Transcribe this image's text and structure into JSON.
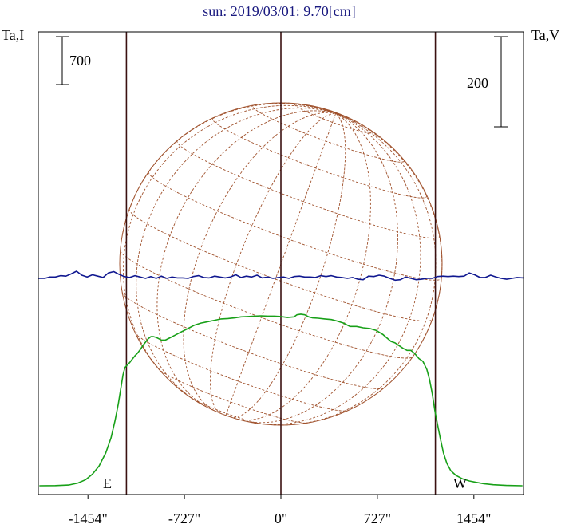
{
  "title": "sun: 2019/03/01: 9.70[cm]",
  "left_axis_label": "Ta,I",
  "right_axis_label": "Ta,V",
  "left_scale_bar_label": "700",
  "right_scale_bar_label": "200",
  "east_label": "E",
  "west_label": "W",
  "colors": {
    "intensity": "#18a018",
    "polarization": "#101890",
    "disk": "#a0522d",
    "frame": "#000000",
    "guides": "#3a1010",
    "title": "#1a1a80"
  },
  "chart_data": {
    "type": "line",
    "title": "sun: 2019/03/01: 9.70[cm]",
    "x_unit": "arcsec",
    "xlim": [
      -1828,
      1828
    ],
    "xticks": [
      -1454,
      -727,
      0,
      727,
      1454
    ],
    "xtick_labels": [
      "-1454\"",
      "-727\"",
      "0\"",
      "727\"",
      "1454\""
    ],
    "solar_limbs": [
      -1164,
      0,
      1164
    ],
    "series": [
      {
        "name": "Ta,I",
        "axis": "left",
        "x": [
          -1820,
          -1700,
          -1600,
          -1530,
          -1470,
          -1420,
          -1370,
          -1320,
          -1280,
          -1250,
          -1225,
          -1205,
          -1190,
          -1175,
          -1160,
          -1140,
          -1120,
          -1100,
          -1080,
          -1060,
          -1040,
          -1020,
          -1000,
          -980,
          -960,
          -940,
          -920,
          -900,
          -870,
          -840,
          -800,
          -750,
          -700,
          -650,
          -600,
          -550,
          -500,
          -450,
          -400,
          -350,
          -300,
          -250,
          -200,
          -150,
          -100,
          -50,
          0,
          50,
          100,
          120,
          150,
          180,
          210,
          240,
          280,
          330,
          380,
          420,
          470,
          520,
          570,
          620,
          670,
          720,
          770,
          800,
          830,
          860,
          890,
          920,
          950,
          980,
          1010,
          1040,
          1070,
          1100,
          1120,
          1140,
          1160,
          1180,
          1200,
          1225,
          1250,
          1280,
          1320,
          1370,
          1420,
          1470,
          1530,
          1600,
          1700,
          1820
        ],
        "y": [
          0,
          2,
          10,
          40,
          90,
          170,
          290,
          480,
          700,
          950,
          1200,
          1440,
          1620,
          1730,
          1760,
          1800,
          1850,
          1900,
          1940,
          1990,
          2050,
          2100,
          2150,
          2180,
          2180,
          2170,
          2150,
          2130,
          2130,
          2160,
          2200,
          2250,
          2300,
          2350,
          2380,
          2400,
          2420,
          2440,
          2445,
          2455,
          2470,
          2475,
          2480,
          2485,
          2480,
          2480,
          2475,
          2460,
          2470,
          2500,
          2510,
          2500,
          2470,
          2455,
          2450,
          2440,
          2430,
          2410,
          2380,
          2330,
          2330,
          2310,
          2300,
          2270,
          2210,
          2160,
          2110,
          2090,
          2050,
          2010,
          1980,
          1980,
          1930,
          1860,
          1820,
          1700,
          1550,
          1350,
          1100,
          900,
          700,
          480,
          330,
          220,
          150,
          100,
          70,
          50,
          30,
          15,
          5,
          0
        ]
      },
      {
        "name": "Ta,V",
        "axis": "right",
        "x": [
          -1828,
          -1780,
          -1740,
          -1700,
          -1660,
          -1620,
          -1580,
          -1540,
          -1500,
          -1460,
          -1420,
          -1380,
          -1340,
          -1300,
          -1260,
          -1220,
          -1180,
          -1140,
          -1100,
          -1060,
          -1020,
          -980,
          -940,
          -900,
          -860,
          -820,
          -780,
          -740,
          -700,
          -660,
          -620,
          -580,
          -540,
          -500,
          -460,
          -420,
          -380,
          -340,
          -300,
          -260,
          -220,
          -180,
          -140,
          -100,
          -60,
          -20,
          20,
          60,
          100,
          140,
          180,
          220,
          260,
          300,
          340,
          380,
          420,
          460,
          500,
          540,
          580,
          620,
          660,
          700,
          740,
          780,
          820,
          860,
          900,
          940,
          980,
          1020,
          1060,
          1100,
          1140,
          1180,
          1220,
          1260,
          1300,
          1340,
          1380,
          1420,
          1460,
          1500,
          1540,
          1580,
          1620,
          1660,
          1700,
          1740,
          1780,
          1828
        ],
        "y": [
          0,
          0,
          3,
          3,
          6,
          5,
          10,
          16,
          7,
          3,
          8,
          5,
          2,
          12,
          15,
          9,
          4,
          2,
          6,
          3,
          0,
          4,
          0,
          5,
          0,
          3,
          1,
          1,
          0,
          4,
          6,
          2,
          1,
          5,
          3,
          1,
          3,
          8,
          2,
          5,
          3,
          7,
          1,
          3,
          0,
          2,
          3,
          0,
          4,
          5,
          3,
          3,
          2,
          6,
          4,
          6,
          3,
          2,
          0,
          2,
          -2,
          -3,
          5,
          4,
          7,
          5,
          0,
          -4,
          -3,
          3,
          0,
          -3,
          -2,
          0,
          0,
          4,
          5,
          4,
          5,
          4,
          5,
          12,
          8,
          2,
          2,
          7,
          3,
          0,
          -2,
          0,
          2,
          1
        ]
      }
    ],
    "left_scale_bar_value": 700,
    "right_scale_bar_value": 200
  }
}
